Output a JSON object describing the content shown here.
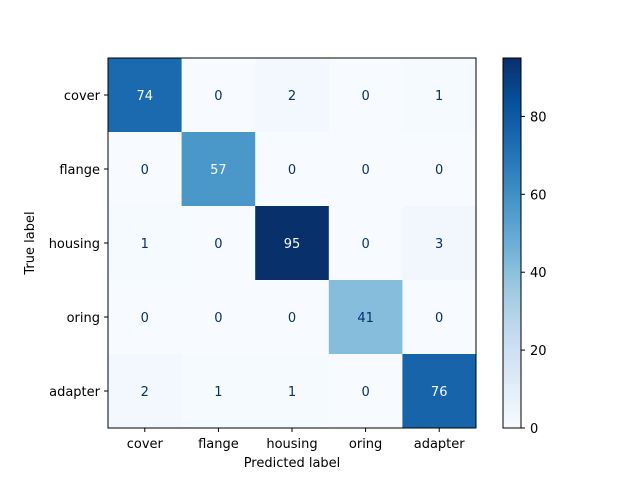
{
  "chart_data": {
    "type": "heatmap",
    "title": "",
    "xlabel": "Predicted label",
    "ylabel": "True label",
    "x_categories": [
      "cover",
      "flange",
      "housing",
      "oring",
      "adapter"
    ],
    "y_categories": [
      "cover",
      "flange",
      "housing",
      "oring",
      "adapter"
    ],
    "values": [
      [
        74,
        0,
        2,
        0,
        1
      ],
      [
        0,
        57,
        0,
        0,
        0
      ],
      [
        1,
        0,
        95,
        0,
        3
      ],
      [
        0,
        0,
        0,
        41,
        0
      ],
      [
        2,
        1,
        1,
        0,
        76
      ]
    ],
    "colorbar": {
      "ticks": [
        0,
        20,
        40,
        60,
        80
      ],
      "min": 0,
      "max": 95
    },
    "colormap": "Blues",
    "colormap_stops": [
      "#f7fbff",
      "#deebf7",
      "#c6dbef",
      "#9ecae1",
      "#6baed6",
      "#4292c6",
      "#2171b5",
      "#08519c",
      "#08306b"
    ],
    "text_colors": {
      "on_light": "#08306b",
      "on_dark": "#f7fbff"
    }
  }
}
